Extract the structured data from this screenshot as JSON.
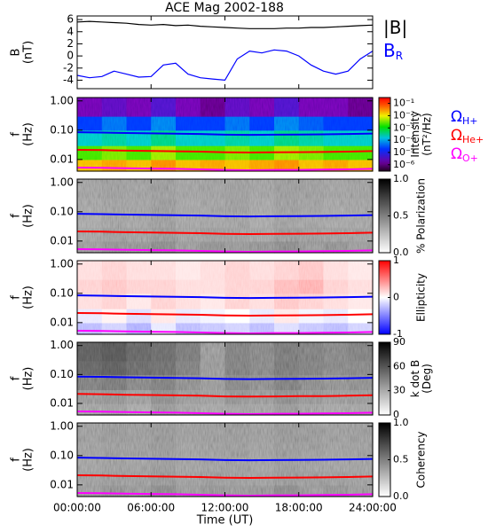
{
  "chart_data": [
    {
      "type": "line",
      "title": "ACE Mag 2002-188",
      "ylabel": [
        "B",
        "(nT)"
      ],
      "x": [
        0,
        1,
        2,
        3,
        4,
        5,
        6,
        7,
        8,
        9,
        10,
        11,
        12,
        13,
        14,
        15,
        16,
        17,
        18,
        19,
        20,
        21,
        22,
        23,
        24
      ],
      "xlim": [
        0,
        24
      ],
      "ylim": [
        -5.4,
        6.6
      ],
      "yticks": [
        -4,
        -2,
        0,
        2,
        4,
        6
      ],
      "series": [
        {
          "name": "|B|",
          "color": "#000000",
          "values": [
            5.6,
            5.7,
            5.6,
            5.5,
            5.4,
            5.2,
            5.1,
            5.2,
            5.0,
            5.1,
            4.9,
            4.8,
            4.7,
            4.6,
            4.5,
            4.5,
            4.5,
            4.6,
            4.6,
            4.7,
            4.7,
            4.8,
            4.9,
            5.0,
            5.1
          ]
        },
        {
          "name": "B",
          "subscript": "R",
          "color": "#0000ff",
          "values": [
            -3.2,
            -3.6,
            -3.4,
            -2.5,
            -3.0,
            -3.5,
            -3.4,
            -1.5,
            -1.2,
            -3.0,
            -3.6,
            -3.8,
            -4.0,
            -0.5,
            0.8,
            0.5,
            1.0,
            0.8,
            0.0,
            -1.5,
            -2.5,
            -3.0,
            -2.5,
            -0.5,
            0.8
          ]
        }
      ]
    },
    {
      "type": "heatmap",
      "ylabel": [
        "f",
        "(Hz)"
      ],
      "log_y": true,
      "ylim": [
        0.004,
        1.3
      ],
      "yticks": [
        {
          "value": 1,
          "label": "1.00"
        },
        {
          "value": 0.1,
          "label": "0.10"
        },
        0.01
      ],
      "y_bins": [
        0.004,
        0.01,
        0.03,
        0.1,
        0.3,
        1.3
      ],
      "xlim": [
        0,
        24
      ],
      "colormap": "rainbow",
      "log_z": true,
      "zlim": [
        3e-07,
        0.3
      ],
      "zlabel": [
        "Intensity",
        "(nT²/Hz)"
      ],
      "zticks": [
        {
          "value": 0.1,
          "label": "10⁻¹"
        },
        {
          "value": 0.01,
          "label": "10⁻²"
        },
        {
          "value": 0.001,
          "label": "10⁻³"
        },
        {
          "value": 0.0001,
          "label": "10⁻⁴"
        },
        {
          "value": 1e-05,
          "label": "10⁻⁵"
        },
        {
          "value": 1e-06,
          "label": "10⁻⁶"
        }
      ],
      "z": [
        [
          0.02,
          0.03,
          0.02,
          0.04,
          0.02,
          0.03,
          0.02,
          0.03,
          0.04,
          0.02,
          0.03,
          0.02
        ],
        [
          0.002,
          0.003,
          0.002,
          0.004,
          0.002,
          0.002,
          0.003,
          0.002,
          0.004,
          0.003,
          0.002,
          0.002
        ],
        [
          0.0002,
          0.0003,
          0.0002,
          0.0004,
          0.0002,
          0.0002,
          0.0003,
          0.0002,
          0.0004,
          0.0003,
          0.0002,
          0.0002
        ],
        [
          2e-05,
          4e-05,
          2e-05,
          5e-05,
          2e-05,
          2e-05,
          4e-05,
          2e-05,
          5e-05,
          3e-05,
          2e-05,
          2e-05
        ],
        [
          2e-06,
          3e-06,
          2e-06,
          4e-06,
          2e-06,
          1e-06,
          3e-06,
          2e-06,
          4e-06,
          2e-06,
          2e-06,
          1e-06
        ]
      ],
      "gyro_legend": true
    },
    {
      "type": "heatmap",
      "ylabel": [
        "f",
        "(Hz)"
      ],
      "log_y": true,
      "ylim": [
        0.004,
        1.3
      ],
      "yticks": [
        {
          "value": 1,
          "label": "1.00"
        },
        {
          "value": 0.1,
          "label": "0.10"
        },
        0.01
      ],
      "y_bins": [
        0.004,
        0.01,
        0.03,
        0.1,
        0.3,
        1.3
      ],
      "xlim": [
        0,
        24
      ],
      "colormap": "gray",
      "zlim": [
        0,
        1
      ],
      "zlabel": [
        "% Polarization"
      ],
      "zticks": [
        {
          "value": 1,
          "label": "1.0"
        },
        {
          "value": 0.5,
          "label": "0.5"
        },
        {
          "value": 0,
          "label": "0.0"
        }
      ],
      "z": [
        [
          0.45,
          0.5,
          0.48,
          0.52,
          0.46,
          0.5,
          0.47,
          0.49,
          0.52,
          0.48,
          0.5,
          0.46
        ],
        [
          0.42,
          0.45,
          0.44,
          0.47,
          0.43,
          0.45,
          0.44,
          0.42,
          0.46,
          0.45,
          0.44,
          0.43
        ],
        [
          0.4,
          0.43,
          0.42,
          0.45,
          0.41,
          0.42,
          0.43,
          0.4,
          0.44,
          0.42,
          0.41,
          0.42
        ],
        [
          0.42,
          0.44,
          0.43,
          0.46,
          0.42,
          0.43,
          0.45,
          0.41,
          0.45,
          0.44,
          0.42,
          0.43
        ],
        [
          0.43,
          0.45,
          0.44,
          0.46,
          0.43,
          0.44,
          0.45,
          0.43,
          0.46,
          0.45,
          0.43,
          0.44
        ]
      ]
    },
    {
      "type": "heatmap",
      "ylabel": [
        "f",
        "(Hz)"
      ],
      "log_y": true,
      "ylim": [
        0.004,
        1.3
      ],
      "yticks": [
        {
          "value": 1,
          "label": "1.00"
        },
        {
          "value": 0.1,
          "label": "0.10"
        },
        0.01
      ],
      "y_bins": [
        0.004,
        0.01,
        0.03,
        0.1,
        0.3,
        1.3
      ],
      "xlim": [
        0,
        24
      ],
      "colormap": "bwr",
      "zlim": [
        -1,
        1
      ],
      "zlabel": [
        "Ellipticity"
      ],
      "zticks": [
        1,
        0,
        -1
      ],
      "z": [
        [
          -0.3,
          -0.2,
          -0.35,
          -0.1,
          -0.3,
          -0.25,
          -0.2,
          -0.3,
          -0.15,
          -0.25,
          -0.3,
          -0.2
        ],
        [
          -0.1,
          0.05,
          -0.15,
          0.1,
          -0.1,
          -0.05,
          0.0,
          -0.1,
          0.1,
          -0.05,
          -0.1,
          0.0
        ],
        [
          0.15,
          0.2,
          0.1,
          0.2,
          0.15,
          0.1,
          0.2,
          0.15,
          0.25,
          0.2,
          0.15,
          0.1
        ],
        [
          0.2,
          0.25,
          0.2,
          0.2,
          0.15,
          0.15,
          0.2,
          0.2,
          0.3,
          0.35,
          0.2,
          0.15
        ],
        [
          0.15,
          0.2,
          0.15,
          0.15,
          0.1,
          0.15,
          0.2,
          0.15,
          0.2,
          0.25,
          0.15,
          0.1
        ]
      ]
    },
    {
      "type": "heatmap",
      "ylabel": [
        "f",
        "(Hz)"
      ],
      "log_y": true,
      "ylim": [
        0.004,
        1.3
      ],
      "yticks": [
        {
          "value": 1,
          "label": "1.00"
        },
        {
          "value": 0.1,
          "label": "0.10"
        },
        0.01
      ],
      "y_bins": [
        0.004,
        0.01,
        0.03,
        0.1,
        0.3,
        1.3
      ],
      "xlim": [
        0,
        24
      ],
      "colormap": "gray",
      "zlim": [
        0,
        90
      ],
      "zlabel": [
        "k dot B",
        "(Deg)"
      ],
      "zticks": [
        90,
        60,
        30,
        0
      ],
      "z": [
        [
          38,
          40,
          36,
          42,
          38,
          37,
          40,
          38,
          42,
          39,
          37,
          38
        ],
        [
          42,
          44,
          40,
          46,
          42,
          40,
          44,
          42,
          46,
          43,
          41,
          42
        ],
        [
          50,
          52,
          48,
          50,
          46,
          42,
          48,
          46,
          50,
          47,
          45,
          46
        ],
        [
          58,
          60,
          56,
          55,
          50,
          42,
          50,
          48,
          52,
          50,
          48,
          48
        ],
        [
          60,
          62,
          58,
          56,
          52,
          42,
          50,
          48,
          52,
          50,
          48,
          50
        ]
      ]
    },
    {
      "type": "heatmap",
      "ylabel": [
        "f",
        "(Hz)"
      ],
      "log_y": true,
      "ylim": [
        0.004,
        1.3
      ],
      "yticks": [
        {
          "value": 1,
          "label": "1.00"
        },
        {
          "value": 0.1,
          "label": "0.10"
        },
        0.01
      ],
      "y_bins": [
        0.004,
        0.01,
        0.03,
        0.1,
        0.3,
        1.3
      ],
      "xlim": [
        0,
        24
      ],
      "colormap": "gray",
      "zlim": [
        0,
        1
      ],
      "zlabel": [
        "Coherency"
      ],
      "zticks": [
        {
          "value": 1,
          "label": "1.0"
        },
        {
          "value": 0.5,
          "label": "0.5"
        },
        {
          "value": 0,
          "label": "0.0"
        }
      ],
      "z": [
        [
          0.46,
          0.5,
          0.47,
          0.52,
          0.46,
          0.49,
          0.47,
          0.48,
          0.52,
          0.47,
          0.5,
          0.46
        ],
        [
          0.44,
          0.46,
          0.45,
          0.48,
          0.44,
          0.46,
          0.45,
          0.44,
          0.47,
          0.46,
          0.45,
          0.44
        ],
        [
          0.43,
          0.45,
          0.44,
          0.46,
          0.43,
          0.44,
          0.45,
          0.43,
          0.46,
          0.44,
          0.43,
          0.44
        ],
        [
          0.44,
          0.46,
          0.45,
          0.47,
          0.44,
          0.45,
          0.46,
          0.44,
          0.47,
          0.46,
          0.44,
          0.45
        ],
        [
          0.45,
          0.47,
          0.46,
          0.48,
          0.45,
          0.46,
          0.47,
          0.45,
          0.48,
          0.47,
          0.45,
          0.46
        ]
      ],
      "xlabel": "Time (UT)",
      "xticks": [
        {
          "value": 0,
          "label": "00:00:00"
        },
        {
          "value": 6,
          "label": "06:00:00"
        },
        {
          "value": 12,
          "label": "12:00:00"
        },
        {
          "value": 18,
          "label": "18:00:00"
        },
        {
          "value": 24,
          "label": "24:00:00"
        }
      ]
    }
  ],
  "gyrofrequency": {
    "x": [
      0,
      2,
      4,
      6,
      8,
      10,
      12,
      14,
      16,
      18,
      20,
      22,
      24
    ],
    "series": [
      {
        "name": "Ω",
        "subscript": "H+",
        "color": "#0000ff",
        "values": [
          0.085,
          0.083,
          0.08,
          0.078,
          0.076,
          0.074,
          0.07,
          0.069,
          0.07,
          0.071,
          0.072,
          0.074,
          0.077
        ]
      },
      {
        "name": "Ω",
        "subscript": "He+",
        "color": "#ff0000",
        "values": [
          0.0213,
          0.0208,
          0.02,
          0.0195,
          0.019,
          0.0185,
          0.0175,
          0.0173,
          0.0175,
          0.0178,
          0.018,
          0.0185,
          0.0193
        ]
      },
      {
        "name": "Ω",
        "subscript": "O+",
        "color": "#ff00ff",
        "values": [
          0.0053,
          0.0052,
          0.005,
          0.0049,
          0.0048,
          0.0046,
          0.0044,
          0.0043,
          0.0044,
          0.0044,
          0.0045,
          0.0046,
          0.0048
        ]
      }
    ]
  }
}
